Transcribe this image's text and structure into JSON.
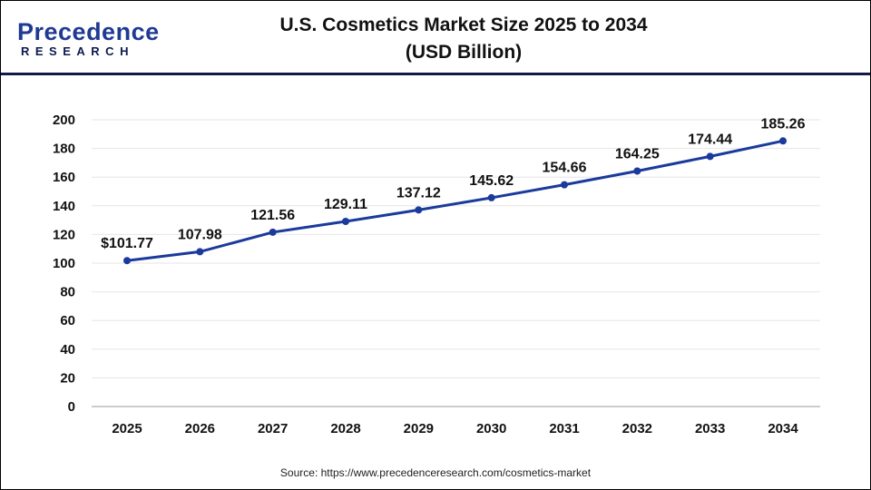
{
  "logo": {
    "top": "Precedence",
    "bottom": "RESEARCH"
  },
  "header": {
    "title_line1": "U.S. Cosmetics Market Size 2025 to 2034",
    "title_line2": "(USD Billion)"
  },
  "source": "Source: https://www.precedenceresearch.com/cosmetics-market",
  "chart_data": {
    "type": "line",
    "title": "U.S. Cosmetics Market Size 2025 to 2034 (USD Billion)",
    "categories": [
      "2025",
      "2026",
      "2027",
      "2028",
      "2029",
      "2030",
      "2031",
      "2032",
      "2033",
      "2034"
    ],
    "values": [
      101.77,
      107.98,
      121.56,
      129.11,
      137.12,
      145.62,
      154.66,
      164.25,
      174.44,
      185.26
    ],
    "data_labels": [
      "$101.77",
      "107.98",
      "121.56",
      "129.11",
      "137.12",
      "145.62",
      "154.66",
      "164.25",
      "174.44",
      "185.26"
    ],
    "ylim": [
      0,
      200
    ],
    "yticks": [
      0,
      20,
      40,
      60,
      80,
      100,
      120,
      140,
      160,
      180,
      200
    ],
    "grid": true,
    "line_color": "#1a3a9c"
  }
}
